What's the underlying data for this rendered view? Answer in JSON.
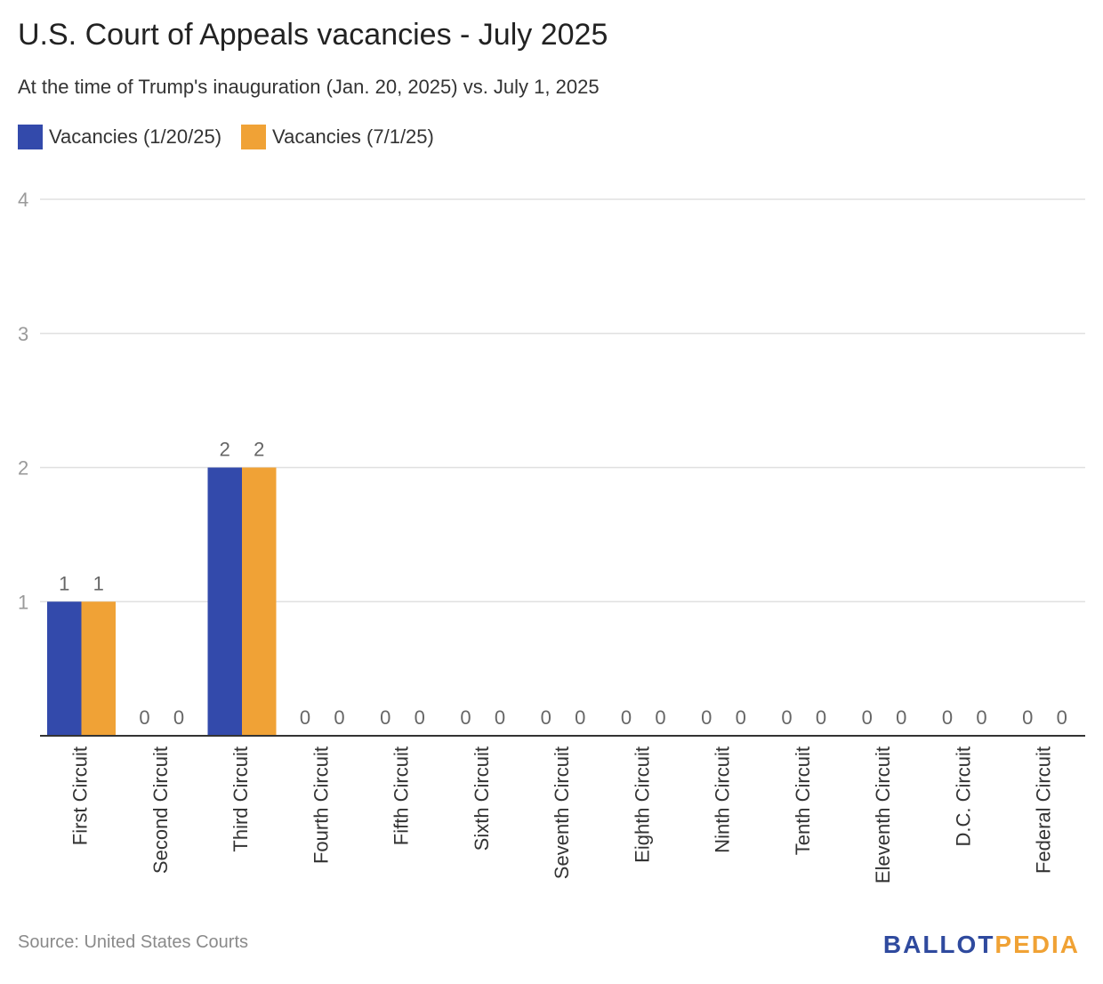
{
  "title": "U.S. Court of Appeals vacancies - July 2025",
  "subtitle": "At the time of Trump's inauguration (Jan. 20, 2025) vs. July 1, 2025",
  "source": "Source: United States Courts",
  "logo": {
    "part1": "BALLOT",
    "part2": "PEDIA"
  },
  "colors": {
    "series1": "#334aab",
    "series2": "#f0a236",
    "grid": "#e0e0e0",
    "axis": "#333333",
    "tick": "#9a9a9a",
    "label": "#666666"
  },
  "chart_data": {
    "type": "bar",
    "categories": [
      "First Circuit",
      "Second Circuit",
      "Third Circuit",
      "Fourth Circuit",
      "Fifth Circuit",
      "Sixth Circuit",
      "Seventh Circuit",
      "Eighth Circuit",
      "Ninth Circuit",
      "Tenth Circuit",
      "Eleventh Circuit",
      "D.C. Circuit",
      "Federal Circuit"
    ],
    "series": [
      {
        "name": "Vacancies (1/20/25)",
        "values": [
          1,
          0,
          2,
          0,
          0,
          0,
          0,
          0,
          0,
          0,
          0,
          0,
          0
        ]
      },
      {
        "name": "Vacancies (7/1/25)",
        "values": [
          1,
          0,
          2,
          0,
          0,
          0,
          0,
          0,
          0,
          0,
          0,
          0,
          0
        ]
      }
    ],
    "ylim": [
      0,
      4
    ],
    "yticks": [
      1,
      2,
      3,
      4
    ],
    "grid": true,
    "data_labels": true,
    "legend_position": "top-left"
  }
}
